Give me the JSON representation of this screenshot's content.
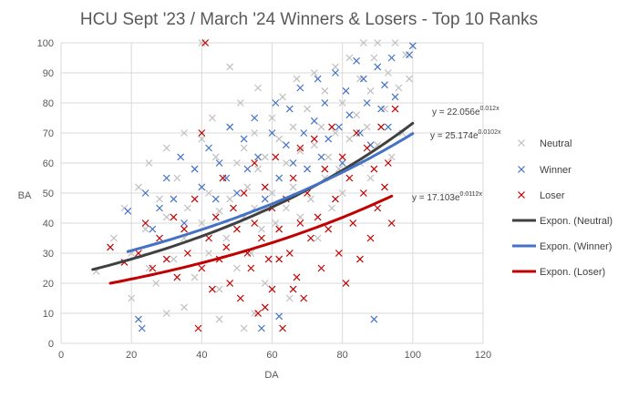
{
  "chart_data": {
    "type": "scatter",
    "title": "HCU Sept '23 / March '24 Winners & Losers - Top 10 Ranks",
    "xlabel": "DA",
    "ylabel": "BA",
    "xlim": [
      0,
      120
    ],
    "ylim": [
      0,
      100
    ],
    "x_ticks": [
      "0",
      "20",
      "40",
      "60",
      "80",
      "100",
      "120"
    ],
    "y_ticks": [
      "0",
      "10",
      "20",
      "30",
      "40",
      "50",
      "60",
      "70",
      "80",
      "90",
      "100"
    ],
    "grid": true,
    "legend_position": "right",
    "series": [
      {
        "name": "Neutral",
        "marker": "x",
        "color": "#bfbfbf",
        "points": [
          [
            10,
            24
          ],
          [
            15,
            35
          ],
          [
            18,
            45
          ],
          [
            20,
            30
          ],
          [
            22,
            52
          ],
          [
            24,
            38
          ],
          [
            25,
            60
          ],
          [
            27,
            20
          ],
          [
            28,
            48
          ],
          [
            30,
            42
          ],
          [
            30,
            65
          ],
          [
            32,
            28
          ],
          [
            33,
            55
          ],
          [
            35,
            35
          ],
          [
            35,
            70
          ],
          [
            36,
            45
          ],
          [
            38,
            58
          ],
          [
            38,
            22
          ],
          [
            40,
            40
          ],
          [
            40,
            68
          ],
          [
            42,
            50
          ],
          [
            42,
            30
          ],
          [
            43,
            75
          ],
          [
            44,
            62
          ],
          [
            45,
            44
          ],
          [
            45,
            18
          ],
          [
            46,
            55
          ],
          [
            47,
            35
          ],
          [
            48,
            72
          ],
          [
            48,
            48
          ],
          [
            50,
            60
          ],
          [
            50,
            25
          ],
          [
            51,
            80
          ],
          [
            52,
            42
          ],
          [
            52,
            65
          ],
          [
            53,
            52
          ],
          [
            54,
            30
          ],
          [
            55,
            70
          ],
          [
            55,
            45
          ],
          [
            56,
            85
          ],
          [
            56,
            58
          ],
          [
            57,
            38
          ],
          [
            58,
            62
          ],
          [
            58,
            20
          ],
          [
            60,
            75
          ],
          [
            60,
            50
          ],
          [
            61,
            40
          ],
          [
            62,
            68
          ],
          [
            62,
            55
          ],
          [
            63,
            82
          ],
          [
            64,
            45
          ],
          [
            64,
            60
          ],
          [
            65,
            30
          ],
          [
            66,
            72
          ],
          [
            66,
            52
          ],
          [
            67,
            88
          ],
          [
            68,
            64
          ],
          [
            68,
            42
          ],
          [
            70,
            78
          ],
          [
            70,
            58
          ],
          [
            71,
            48
          ],
          [
            72,
            90
          ],
          [
            72,
            66
          ],
          [
            73,
            35
          ],
          [
            74,
            72
          ],
          [
            75,
            55
          ],
          [
            75,
            84
          ],
          [
            76,
            62
          ],
          [
            77,
            45
          ],
          [
            78,
            92
          ],
          [
            78,
            70
          ],
          [
            79,
            58
          ],
          [
            80,
            80
          ],
          [
            80,
            50
          ],
          [
            82,
            95
          ],
          [
            82,
            68
          ],
          [
            83,
            40
          ],
          [
            84,
            76
          ],
          [
            85,
            88
          ],
          [
            85,
            60
          ],
          [
            86,
            100
          ],
          [
            87,
            72
          ],
          [
            88,
            55
          ],
          [
            88,
            84
          ],
          [
            89,
            95
          ],
          [
            90,
            66
          ],
          [
            90,
            100
          ],
          [
            92,
            78
          ],
          [
            93,
            90
          ],
          [
            94,
            62
          ],
          [
            95,
            100
          ],
          [
            96,
            85
          ],
          [
            97,
            70
          ],
          [
            98,
            96
          ],
          [
            99,
            88
          ],
          [
            40,
            100
          ],
          [
            35,
            12
          ],
          [
            45,
            8
          ],
          [
            55,
            10
          ],
          [
            65,
            15
          ],
          [
            30,
            10
          ],
          [
            20,
            15
          ],
          [
            25,
            25
          ],
          [
            48,
            92
          ],
          [
            52,
            5
          ]
        ]
      },
      {
        "name": "Winner",
        "marker": "x",
        "color": "#4472c4",
        "points": [
          [
            19,
            44
          ],
          [
            22,
            8
          ],
          [
            23,
            5
          ],
          [
            24,
            50
          ],
          [
            26,
            38
          ],
          [
            28,
            45
          ],
          [
            30,
            55
          ],
          [
            32,
            48
          ],
          [
            34,
            62
          ],
          [
            35,
            40
          ],
          [
            38,
            58
          ],
          [
            40,
            52
          ],
          [
            42,
            65
          ],
          [
            44,
            48
          ],
          [
            45,
            60
          ],
          [
            47,
            55
          ],
          [
            48,
            72
          ],
          [
            50,
            50
          ],
          [
            52,
            68
          ],
          [
            53,
            58
          ],
          [
            55,
            75
          ],
          [
            56,
            62
          ],
          [
            58,
            48
          ],
          [
            60,
            70
          ],
          [
            61,
            80
          ],
          [
            62,
            55
          ],
          [
            64,
            66
          ],
          [
            65,
            78
          ],
          [
            66,
            60
          ],
          [
            68,
            85
          ],
          [
            69,
            70
          ],
          [
            70,
            58
          ],
          [
            72,
            74
          ],
          [
            73,
            88
          ],
          [
            74,
            62
          ],
          [
            75,
            80
          ],
          [
            76,
            68
          ],
          [
            78,
            90
          ],
          [
            79,
            72
          ],
          [
            80,
            60
          ],
          [
            81,
            84
          ],
          [
            82,
            76
          ],
          [
            84,
            94
          ],
          [
            85,
            70
          ],
          [
            86,
            88
          ],
          [
            87,
            80
          ],
          [
            88,
            66
          ],
          [
            89,
            8
          ],
          [
            90,
            92
          ],
          [
            91,
            78
          ],
          [
            92,
            86
          ],
          [
            93,
            72
          ],
          [
            94,
            95
          ],
          [
            95,
            82
          ],
          [
            100,
            99
          ],
          [
            99,
            96
          ],
          [
            62,
            9
          ],
          [
            57,
            5
          ]
        ]
      },
      {
        "name": "Loser",
        "marker": "x",
        "color": "#c00000",
        "points": [
          [
            14,
            32
          ],
          [
            18,
            27
          ],
          [
            22,
            30
          ],
          [
            24,
            40
          ],
          [
            26,
            25
          ],
          [
            28,
            35
          ],
          [
            30,
            28
          ],
          [
            32,
            42
          ],
          [
            33,
            22
          ],
          [
            35,
            38
          ],
          [
            36,
            30
          ],
          [
            38,
            48
          ],
          [
            39,
            5
          ],
          [
            40,
            70
          ],
          [
            40,
            25
          ],
          [
            41,
            100
          ],
          [
            42,
            35
          ],
          [
            43,
            18
          ],
          [
            44,
            42
          ],
          [
            45,
            28
          ],
          [
            46,
            55
          ],
          [
            47,
            32
          ],
          [
            48,
            20
          ],
          [
            49,
            45
          ],
          [
            50,
            38
          ],
          [
            51,
            15
          ],
          [
            52,
            50
          ],
          [
            53,
            30
          ],
          [
            54,
            25
          ],
          [
            55,
            60
          ],
          [
            55,
            40
          ],
          [
            56,
            10
          ],
          [
            57,
            35
          ],
          [
            58,
            52
          ],
          [
            59,
            28
          ],
          [
            60,
            45
          ],
          [
            60,
            18
          ],
          [
            61,
            62
          ],
          [
            62,
            38
          ],
          [
            63,
            5
          ],
          [
            64,
            48
          ],
          [
            65,
            30
          ],
          [
            66,
            55
          ],
          [
            67,
            22
          ],
          [
            68,
            65
          ],
          [
            68,
            40
          ],
          [
            69,
            15
          ],
          [
            70,
            50
          ],
          [
            71,
            35
          ],
          [
            72,
            68
          ],
          [
            73,
            42
          ],
          [
            74,
            25
          ],
          [
            75,
            58
          ],
          [
            76,
            38
          ],
          [
            77,
            72
          ],
          [
            78,
            48
          ],
          [
            79,
            30
          ],
          [
            80,
            62
          ],
          [
            81,
            20
          ],
          [
            82,
            55
          ],
          [
            83,
            40
          ],
          [
            84,
            70
          ],
          [
            85,
            28
          ],
          [
            86,
            50
          ],
          [
            87,
            65
          ],
          [
            88,
            35
          ],
          [
            89,
            58
          ],
          [
            90,
            45
          ],
          [
            91,
            72
          ],
          [
            92,
            52
          ],
          [
            93,
            60
          ],
          [
            94,
            40
          ],
          [
            95,
            78
          ],
          [
            62,
            28
          ],
          [
            58,
            12
          ],
          [
            66,
            18
          ]
        ]
      }
    ],
    "trendlines": [
      {
        "name": "Expon. (Neutral)",
        "color": "#404040",
        "a": 22.056,
        "b": 0.012,
        "x_range": [
          9,
          100
        ],
        "equation_base": "y = 22.056e",
        "equation_exp": "0.012x"
      },
      {
        "name": "Expon. (Winner)",
        "color": "#4472c4",
        "a": 25.174,
        "b": 0.0102,
        "x_range": [
          19,
          100
        ],
        "equation_base": "y = 25.174e",
        "equation_exp": "0.0102x"
      },
      {
        "name": "Expon. (Loser)",
        "color": "#c00000",
        "a": 17.103,
        "b": 0.0112,
        "x_range": [
          14,
          94
        ],
        "equation_base": "y = 17.103e",
        "equation_exp": "0.0112x"
      }
    ]
  }
}
